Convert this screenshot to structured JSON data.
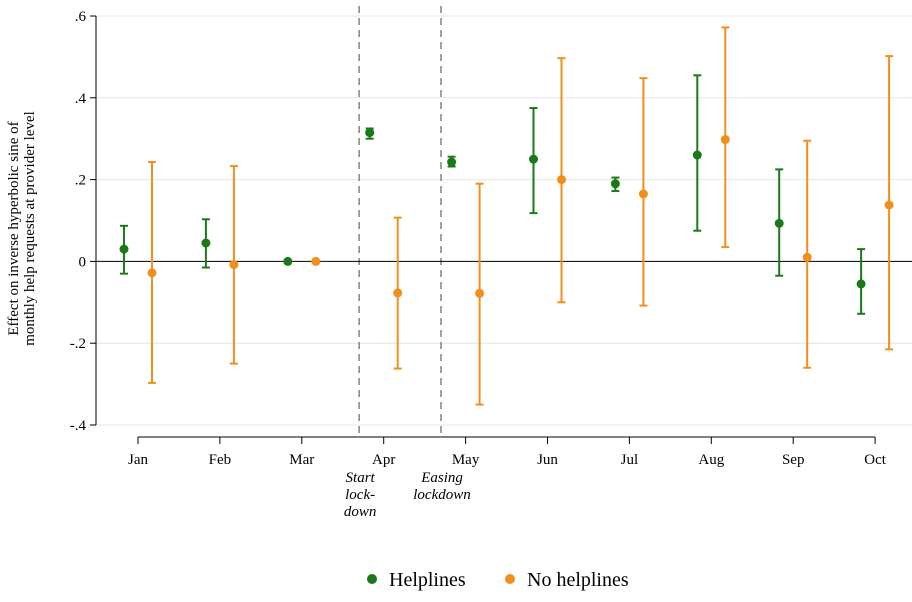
{
  "chart_data": {
    "type": "scatter",
    "subtype": "coefficient-plot-with-confidence-intervals",
    "title": "",
    "xlabel": "",
    "ylabel_lines": [
      "Effect on inverse hyperbolic sine of",
      "monthly help requests at provider level"
    ],
    "categories": [
      "Jan",
      "Feb",
      "Mar",
      "Apr",
      "May",
      "Jun",
      "Jul",
      "Aug",
      "Sep",
      "Oct"
    ],
    "ylim": [
      -0.4,
      0.6
    ],
    "yticks": [
      -0.4,
      -0.2,
      0,
      0.2,
      0.4,
      0.6
    ],
    "ytick_labels": [
      "-.4",
      "-.2",
      "0",
      ".2",
      ".4",
      ".6"
    ],
    "zero_line": true,
    "grid": "horizontal",
    "series": [
      {
        "name": "Helplines",
        "color": "#1a7a1a",
        "values": [
          0.03,
          0.045,
          0.0,
          0.315,
          0.243,
          0.25,
          0.19,
          0.26,
          0.093,
          -0.055
        ],
        "ci_low": [
          -0.03,
          -0.015,
          0.0,
          0.3,
          0.232,
          0.118,
          0.172,
          0.075,
          -0.035,
          -0.128
        ],
        "ci_high": [
          0.087,
          0.103,
          0.0,
          0.325,
          0.256,
          0.375,
          0.205,
          0.455,
          0.225,
          0.03
        ]
      },
      {
        "name": "No helplines",
        "color": "#f28e1c",
        "values": [
          -0.028,
          -0.008,
          0.0,
          -0.077,
          -0.078,
          0.2,
          0.165,
          0.298,
          0.01,
          0.138
        ],
        "ci_low": [
          -0.297,
          -0.25,
          0.0,
          -0.262,
          -0.35,
          -0.1,
          -0.108,
          0.035,
          -0.26,
          -0.215
        ],
        "ci_high": [
          0.243,
          0.233,
          0.0,
          0.107,
          0.19,
          0.497,
          0.448,
          0.572,
          0.295,
          0.502
        ]
      }
    ],
    "event_lines": [
      {
        "after_category": "Mar",
        "label_lines": [
          "Start",
          "lock-",
          "down"
        ]
      },
      {
        "after_category": "Apr",
        "label_lines": [
          "Easing",
          "lockdown"
        ]
      }
    ],
    "legend": {
      "placement": "bottom-center",
      "entries": [
        "Helplines",
        "No helplines"
      ]
    }
  }
}
